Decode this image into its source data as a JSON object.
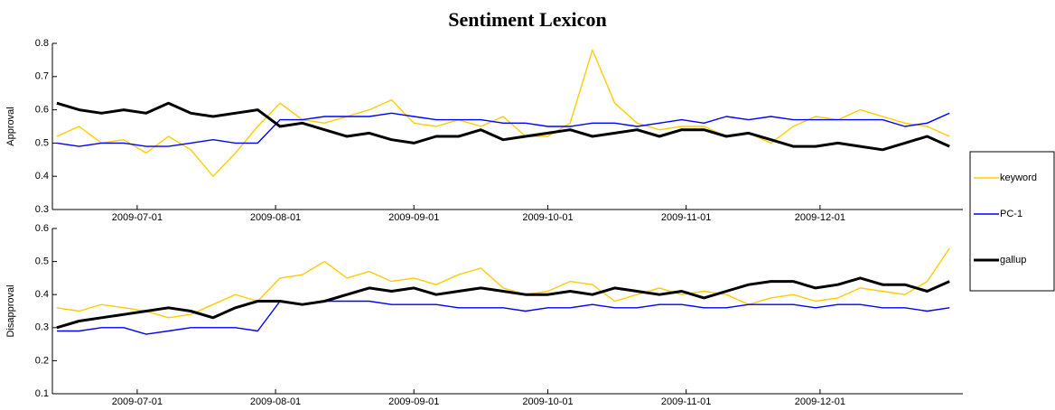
{
  "chart_data": [
    {
      "type": "line",
      "title": "Sentiment Lexicon",
      "ylabel": "Approval",
      "x": [
        "2009-06-13",
        "2009-06-18",
        "2009-06-23",
        "2009-06-28",
        "2009-07-03",
        "2009-07-08",
        "2009-07-13",
        "2009-07-18",
        "2009-07-23",
        "2009-07-28",
        "2009-08-02",
        "2009-08-07",
        "2009-08-12",
        "2009-08-17",
        "2009-08-22",
        "2009-08-27",
        "2009-09-01",
        "2009-09-06",
        "2009-09-11",
        "2009-09-16",
        "2009-09-21",
        "2009-09-26",
        "2009-10-01",
        "2009-10-06",
        "2009-10-11",
        "2009-10-16",
        "2009-10-21",
        "2009-10-26",
        "2009-10-31",
        "2009-11-05",
        "2009-11-10",
        "2009-11-15",
        "2009-11-20",
        "2009-11-25",
        "2009-11-30",
        "2009-12-05",
        "2009-12-10",
        "2009-12-15",
        "2009-12-20",
        "2009-12-25",
        "2009-12-30"
      ],
      "xlim": [
        "2009-06-12",
        "2010-01-02"
      ],
      "xticks": [
        "2009-07-01",
        "2009-08-01",
        "2009-09-01",
        "2009-10-01",
        "2009-11-01",
        "2009-12-01"
      ],
      "ylim": [
        0.3,
        0.8
      ],
      "yticks": [
        0.3,
        0.4,
        0.5,
        0.6,
        0.7,
        0.8
      ],
      "legend": "outside right",
      "series": [
        {
          "name": "keyword",
          "color": "#ffcc00",
          "values": [
            0.52,
            0.55,
            0.5,
            0.51,
            0.47,
            0.52,
            0.48,
            0.4,
            0.47,
            0.55,
            0.62,
            0.57,
            0.56,
            0.58,
            0.6,
            0.63,
            0.56,
            0.55,
            0.57,
            0.55,
            0.58,
            0.52,
            0.52,
            0.56,
            0.78,
            0.62,
            0.56,
            0.54,
            0.55,
            0.55,
            0.52,
            0.53,
            0.5,
            0.55,
            0.58,
            0.57,
            0.6,
            0.58,
            0.56,
            0.55,
            0.52
          ]
        },
        {
          "name": "PC-1",
          "color": "#0000ff",
          "values": [
            0.5,
            0.49,
            0.5,
            0.5,
            0.49,
            0.49,
            0.5,
            0.51,
            0.5,
            0.5,
            0.57,
            0.57,
            0.58,
            0.58,
            0.58,
            0.59,
            0.58,
            0.57,
            0.57,
            0.57,
            0.56,
            0.56,
            0.55,
            0.55,
            0.56,
            0.56,
            0.55,
            0.56,
            0.57,
            0.56,
            0.58,
            0.57,
            0.58,
            0.57,
            0.57,
            0.57,
            0.57,
            0.57,
            0.55,
            0.56,
            0.59
          ]
        },
        {
          "name": "gallup",
          "color": "#000000",
          "values": [
            0.62,
            0.6,
            0.59,
            0.6,
            0.59,
            0.62,
            0.59,
            0.58,
            0.59,
            0.6,
            0.55,
            0.56,
            0.54,
            0.52,
            0.53,
            0.51,
            0.5,
            0.52,
            0.52,
            0.54,
            0.51,
            0.52,
            0.53,
            0.54,
            0.52,
            0.53,
            0.54,
            0.52,
            0.54,
            0.54,
            0.52,
            0.53,
            0.51,
            0.49,
            0.49,
            0.5,
            0.49,
            0.48,
            0.5,
            0.52,
            0.49
          ]
        }
      ]
    },
    {
      "type": "line",
      "ylabel": "Disapproval",
      "x": [
        "2009-06-13",
        "2009-06-18",
        "2009-06-23",
        "2009-06-28",
        "2009-07-03",
        "2009-07-08",
        "2009-07-13",
        "2009-07-18",
        "2009-07-23",
        "2009-07-28",
        "2009-08-02",
        "2009-08-07",
        "2009-08-12",
        "2009-08-17",
        "2009-08-22",
        "2009-08-27",
        "2009-09-01",
        "2009-09-06",
        "2009-09-11",
        "2009-09-16",
        "2009-09-21",
        "2009-09-26",
        "2009-10-01",
        "2009-10-06",
        "2009-10-11",
        "2009-10-16",
        "2009-10-21",
        "2009-10-26",
        "2009-10-31",
        "2009-11-05",
        "2009-11-10",
        "2009-11-15",
        "2009-11-20",
        "2009-11-25",
        "2009-11-30",
        "2009-12-05",
        "2009-12-10",
        "2009-12-15",
        "2009-12-20",
        "2009-12-25",
        "2009-12-30"
      ],
      "xlim": [
        "2009-06-12",
        "2010-01-02"
      ],
      "xticks": [
        "2009-07-01",
        "2009-08-01",
        "2009-09-01",
        "2009-10-01",
        "2009-11-01",
        "2009-12-01"
      ],
      "ylim": [
        0.1,
        0.6
      ],
      "yticks": [
        0.1,
        0.2,
        0.3,
        0.4,
        0.5,
        0.6
      ],
      "series": [
        {
          "name": "keyword",
          "color": "#ffcc00",
          "values": [
            0.36,
            0.35,
            0.37,
            0.36,
            0.35,
            0.33,
            0.34,
            0.37,
            0.4,
            0.38,
            0.45,
            0.46,
            0.5,
            0.45,
            0.47,
            0.44,
            0.45,
            0.43,
            0.46,
            0.48,
            0.42,
            0.4,
            0.41,
            0.44,
            0.43,
            0.38,
            0.4,
            0.42,
            0.4,
            0.41,
            0.4,
            0.37,
            0.39,
            0.4,
            0.38,
            0.39,
            0.42,
            0.41,
            0.4,
            0.44,
            0.54
          ]
        },
        {
          "name": "PC-1",
          "color": "#0000ff",
          "values": [
            0.29,
            0.29,
            0.3,
            0.3,
            0.28,
            0.29,
            0.3,
            0.3,
            0.3,
            0.29,
            0.38,
            0.37,
            0.38,
            0.38,
            0.38,
            0.37,
            0.37,
            0.37,
            0.36,
            0.36,
            0.36,
            0.35,
            0.36,
            0.36,
            0.37,
            0.36,
            0.36,
            0.37,
            0.37,
            0.36,
            0.36,
            0.37,
            0.37,
            0.37,
            0.36,
            0.37,
            0.37,
            0.36,
            0.36,
            0.35,
            0.36
          ]
        },
        {
          "name": "gallup",
          "color": "#000000",
          "values": [
            0.3,
            0.32,
            0.33,
            0.34,
            0.35,
            0.36,
            0.35,
            0.33,
            0.36,
            0.38,
            0.38,
            0.37,
            0.38,
            0.4,
            0.42,
            0.41,
            0.42,
            0.4,
            0.41,
            0.42,
            0.41,
            0.4,
            0.4,
            0.41,
            0.4,
            0.42,
            0.41,
            0.4,
            0.41,
            0.39,
            0.41,
            0.43,
            0.44,
            0.44,
            0.42,
            0.43,
            0.45,
            0.43,
            0.43,
            0.41,
            0.44
          ]
        }
      ]
    }
  ]
}
